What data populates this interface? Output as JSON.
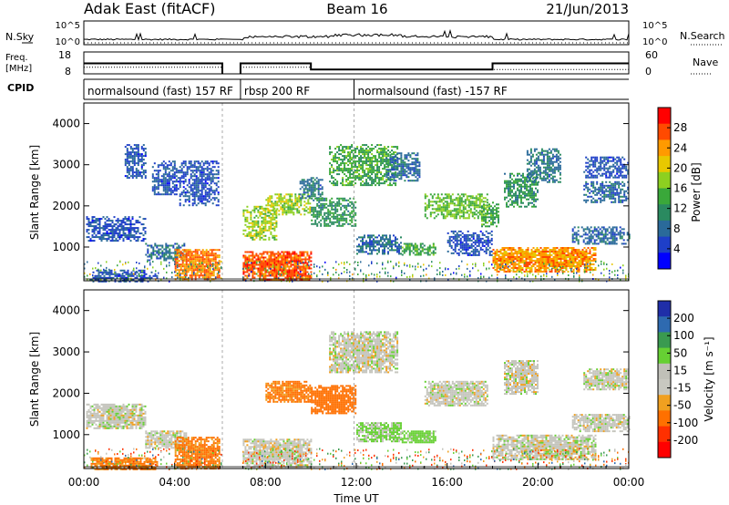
{
  "header": {
    "title": "Adak East (fitACF)",
    "beam": "Beam 16",
    "date": "21/Jun/2013"
  },
  "panels": {
    "nsky": {
      "left_label": "N.Sky",
      "right_label": "N.Search",
      "tick_top": "10^5",
      "tick_bottom": "10^0",
      "right_tick_top": "10^5",
      "right_tick_bottom": "10^0"
    },
    "freq": {
      "left_label_1": "Freq.",
      "left_label_2": "[MHz]",
      "right_label": "Nave",
      "left_tick_top": "18",
      "left_tick_bottom": "8",
      "right_tick_top": "60",
      "right_tick_bottom": "0"
    },
    "cpid": {
      "label": "CPID",
      "segments": [
        {
          "text": "normalsound (fast) 157 RF",
          "start_hour": 0.0,
          "end_hour": 6.1
        },
        {
          "text": "rbsp 200 RF",
          "start_hour": 6.9,
          "end_hour": 11.9
        },
        {
          "text": "normalsound (fast) -157 RF",
          "start_hour": 11.9,
          "end_hour": 24.0
        }
      ]
    }
  },
  "power_panel": {
    "ylabel": "Slant Range [km]",
    "colorbar_label": "Power [dB]",
    "colorbar_ticks": [
      "28",
      "24",
      "20",
      "16",
      "12",
      "8",
      "4"
    ],
    "colorbar_colors": [
      "#ff0000",
      "#ff4a00",
      "#ff9a00",
      "#e8c800",
      "#8dd020",
      "#3aa83a",
      "#2a8a60",
      "#2a6a9a",
      "#1e3fc8",
      "#0000ff"
    ]
  },
  "velocity_panel": {
    "ylabel": "Slant Range [km]",
    "colorbar_label": "Velocity [m s⁻¹]",
    "colorbar_ticks": [
      "200",
      "100",
      "50",
      "15",
      "-15",
      "-50",
      "-100",
      "-200"
    ],
    "colorbar_colors": [
      "#1f2ea8",
      "#2e6ab0",
      "#3a9a50",
      "#66d033",
      "#c0c0b8",
      "#c8c8c0",
      "#f0a020",
      "#ff7000",
      "#ff3000",
      "#ff0000"
    ]
  },
  "xaxis": {
    "label": "Time UT",
    "ticks": [
      "00:00",
      "04:00",
      "08:00",
      "12:00",
      "16:00",
      "20:00",
      "00:00"
    ]
  },
  "chart_data": {
    "type": "heatmap",
    "title": "Adak East (fitACF)",
    "subtitle": "Beam 16",
    "date": "21/Jun/2013",
    "xlabel": "Time UT",
    "ylabel": "Slant Range [km]",
    "xlim_hours": [
      0,
      24
    ],
    "ylim_km": [
      180,
      4500
    ],
    "y_ticks_km": [
      1000,
      2000,
      3000,
      4000
    ],
    "x_ticks": [
      "00:00",
      "04:00",
      "08:00",
      "12:00",
      "16:00",
      "20:00",
      "00:00"
    ],
    "data_gap_hours": [
      6.1,
      6.9
    ],
    "frequency_mhz": [
      {
        "start_hour": 0.0,
        "end_hour": 6.1,
        "value": 12.8
      },
      {
        "start_hour": 6.9,
        "end_hour": 10.0,
        "value": 12.8
      },
      {
        "start_hour": 10.0,
        "end_hour": 18.0,
        "value": 10.0
      },
      {
        "start_hour": 18.0,
        "end_hour": 24.0,
        "value": 12.8
      }
    ],
    "power_db_scale": [
      0,
      32
    ],
    "velocity_scale_ms": [
      -250,
      250
    ],
    "power_regions": [
      {
        "t0": 0.1,
        "t1": 2.7,
        "r0": 1150,
        "r1": 1750,
        "power": 6
      },
      {
        "t0": 0.3,
        "t1": 3.2,
        "r0": 150,
        "r1": 450,
        "power": 6
      },
      {
        "t0": 1.8,
        "t1": 2.7,
        "r0": 2700,
        "r1": 3500,
        "power": 6
      },
      {
        "t0": 2.7,
        "t1": 4.5,
        "r0": 700,
        "r1": 1100,
        "power": 8
      },
      {
        "t0": 3.0,
        "t1": 4.2,
        "r0": 2300,
        "r1": 3100,
        "power": 6
      },
      {
        "t0": 4.0,
        "t1": 6.0,
        "r0": 200,
        "r1": 950,
        "power": 25
      },
      {
        "t0": 4.2,
        "t1": 5.9,
        "r0": 2000,
        "r1": 3100,
        "power": 6
      },
      {
        "t0": 7.0,
        "t1": 10.0,
        "r0": 200,
        "r1": 900,
        "power": 27
      },
      {
        "t0": 7.0,
        "t1": 8.5,
        "r0": 1200,
        "r1": 2000,
        "power": 18
      },
      {
        "t0": 8.0,
        "t1": 10.0,
        "r0": 1800,
        "r1": 2300,
        "power": 18
      },
      {
        "t0": 9.5,
        "t1": 10.5,
        "r0": 2200,
        "r1": 2700,
        "power": 9
      },
      {
        "t0": 10.0,
        "t1": 12.0,
        "r0": 1500,
        "r1": 2200,
        "power": 12
      },
      {
        "t0": 10.8,
        "t1": 13.8,
        "r0": 2500,
        "r1": 3500,
        "power": 14
      },
      {
        "t0": 12.0,
        "t1": 14.0,
        "r0": 850,
        "r1": 1300,
        "power": 8
      },
      {
        "t0": 13.3,
        "t1": 14.8,
        "r0": 2600,
        "r1": 3300,
        "power": 8
      },
      {
        "t0": 14.0,
        "t1": 15.5,
        "r0": 800,
        "r1": 1100,
        "power": 14
      },
      {
        "t0": 15.0,
        "t1": 17.8,
        "r0": 1700,
        "r1": 2300,
        "power": 16
      },
      {
        "t0": 16.0,
        "t1": 18.0,
        "r0": 800,
        "r1": 1400,
        "power": 6
      },
      {
        "t0": 17.5,
        "t1": 18.3,
        "r0": 1500,
        "r1": 2100,
        "power": 14
      },
      {
        "t0": 18.0,
        "t1": 22.5,
        "r0": 400,
        "r1": 1000,
        "power": 24
      },
      {
        "t0": 18.5,
        "t1": 20.0,
        "r0": 2000,
        "r1": 2800,
        "power": 12
      },
      {
        "t0": 19.5,
        "t1": 21.0,
        "r0": 2600,
        "r1": 3400,
        "power": 9
      },
      {
        "t0": 21.5,
        "t1": 24.0,
        "r0": 1100,
        "r1": 1500,
        "power": 8
      },
      {
        "t0": 22.0,
        "t1": 24.0,
        "r0": 2100,
        "r1": 2600,
        "power": 8
      },
      {
        "t0": 22.0,
        "t1": 24.0,
        "r0": 2700,
        "r1": 3200,
        "power": 6
      }
    ],
    "velocity_regions": [
      {
        "t0": 0.1,
        "t1": 2.7,
        "r0": 1150,
        "r1": 1750,
        "velocity": 0
      },
      {
        "t0": 0.3,
        "t1": 3.2,
        "r0": 150,
        "r1": 450,
        "velocity": -60
      },
      {
        "t0": 2.7,
        "t1": 4.5,
        "r0": 700,
        "r1": 1100,
        "velocity": 0
      },
      {
        "t0": 4.0,
        "t1": 6.0,
        "r0": 200,
        "r1": 950,
        "velocity": -60
      },
      {
        "t0": 7.0,
        "t1": 10.0,
        "r0": 200,
        "r1": 900,
        "velocity": 0
      },
      {
        "t0": 8.0,
        "t1": 10.0,
        "r0": 1800,
        "r1": 2300,
        "velocity": -60
      },
      {
        "t0": 10.0,
        "t1": 12.0,
        "r0": 1500,
        "r1": 2200,
        "velocity": -80
      },
      {
        "t0": 10.8,
        "t1": 13.8,
        "r0": 2500,
        "r1": 3500,
        "velocity": 0
      },
      {
        "t0": 12.0,
        "t1": 14.0,
        "r0": 850,
        "r1": 1300,
        "velocity": 20
      },
      {
        "t0": 14.0,
        "t1": 15.5,
        "r0": 800,
        "r1": 1100,
        "velocity": 30
      },
      {
        "t0": 15.0,
        "t1": 17.8,
        "r0": 1700,
        "r1": 2300,
        "velocity": 0
      },
      {
        "t0": 18.0,
        "t1": 22.5,
        "r0": 400,
        "r1": 1000,
        "velocity": 0
      },
      {
        "t0": 18.5,
        "t1": 20.0,
        "r0": 2000,
        "r1": 2800,
        "velocity": 0
      },
      {
        "t0": 21.5,
        "t1": 24.0,
        "r0": 1100,
        "r1": 1500,
        "velocity": 0
      },
      {
        "t0": 22.0,
        "t1": 24.0,
        "r0": 2100,
        "r1": 2600,
        "velocity": 0
      }
    ]
  }
}
